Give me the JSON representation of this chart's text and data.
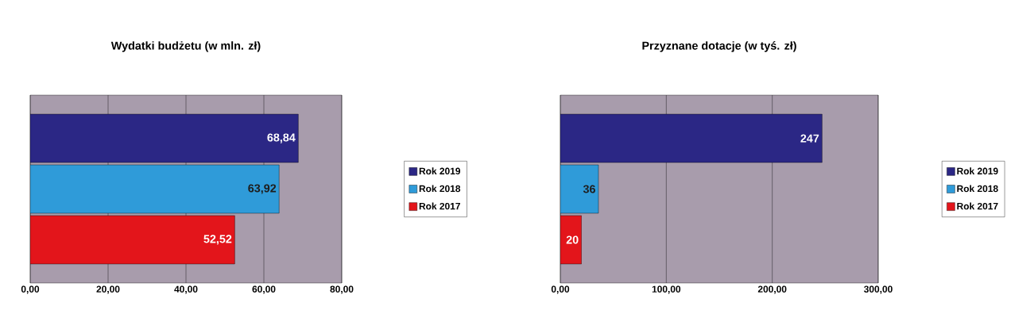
{
  "chart_data": [
    {
      "type": "bar",
      "orientation": "horizontal",
      "title": "Wydatki budżetu (w mln. zł)",
      "categories": [
        null
      ],
      "series": [
        {
          "name": "Rok 2019",
          "color": "#2b2785",
          "values": [
            68.84
          ],
          "value_labels": [
            "68,84"
          ]
        },
        {
          "name": "Rok 2018",
          "color": "#2f9bd9",
          "values": [
            63.92
          ],
          "value_labels": [
            "63,92"
          ]
        },
        {
          "name": "Rok 2017",
          "color": "#e3151b",
          "values": [
            52.52
          ],
          "value_labels": [
            "52,52"
          ]
        }
      ],
      "xlim": [
        0,
        80
      ],
      "xticks": [
        {
          "value": 0,
          "label": "0,00"
        },
        {
          "value": 20,
          "label": "20,00"
        },
        {
          "value": 40,
          "label": "40,00"
        },
        {
          "value": 60,
          "label": "60,00"
        },
        {
          "value": 80,
          "label": "80,00"
        }
      ],
      "grid": "x",
      "legend": "right",
      "tick_labels": "x"
    },
    {
      "type": "bar",
      "orientation": "horizontal",
      "title": "Przyznane dotacje (w tyś. zł)",
      "categories": [
        null
      ],
      "series": [
        {
          "name": "Rok 2019",
          "color": "#2b2785",
          "values": [
            247
          ],
          "value_labels": [
            "247"
          ]
        },
        {
          "name": "Rok 2018",
          "color": "#2f9bd9",
          "values": [
            36
          ],
          "value_labels": [
            "36"
          ]
        },
        {
          "name": "Rok 2017",
          "color": "#e3151b",
          "values": [
            20
          ],
          "value_labels": [
            "20"
          ]
        }
      ],
      "xlim": [
        0,
        300
      ],
      "xticks": [
        {
          "value": 0,
          "label": "0,00"
        },
        {
          "value": 100,
          "label": "100,00"
        },
        {
          "value": 200,
          "label": "200,00"
        },
        {
          "value": 300,
          "label": "300,00"
        }
      ],
      "grid": "x",
      "legend": "right",
      "tick_labels": "x"
    }
  ]
}
